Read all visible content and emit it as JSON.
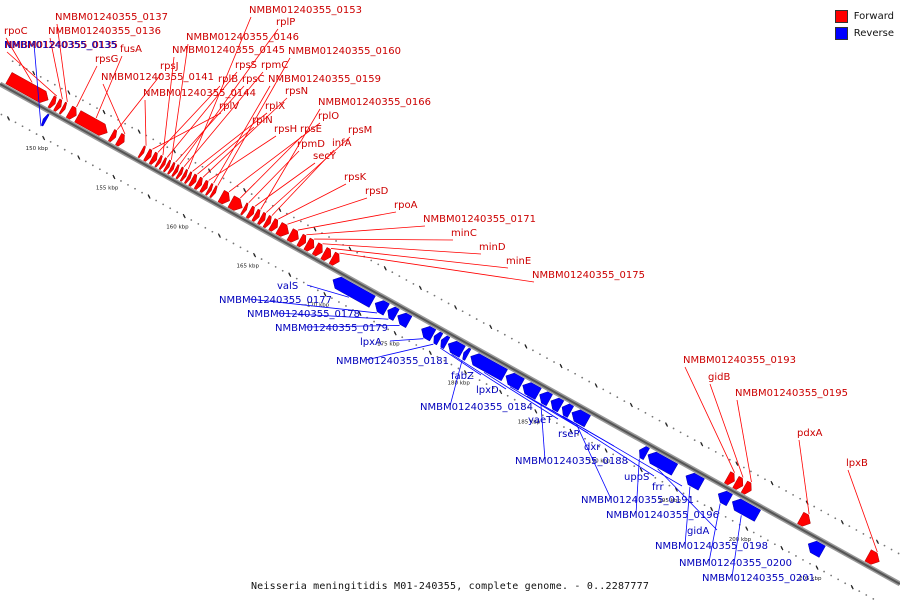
{
  "caption": "Neisseria meningitidis M01-240355, complete genome. - 0..2287777",
  "legend": [
    {
      "label": "Forward",
      "color": "#ff0000"
    },
    {
      "label": "Reverse",
      "color": "#0000ff"
    }
  ],
  "colors": {
    "forward": "#ff0000",
    "reverse": "#0000ff",
    "forward_label": "#cc0000",
    "reverse_label": "#0000bb",
    "backbone": "#555555"
  },
  "genome_window": {
    "start_kbp": 146,
    "end_kbp": 210
  },
  "scale_ticks": [
    "150 kbp",
    "155 kbp",
    "160 kbp",
    "165 kbp",
    "170 kbp",
    "175 kbp",
    "180 kbp",
    "185 kbp",
    "190 kbp",
    "195 kbp",
    "200 kbp",
    "205 kbp"
  ],
  "forward_genes": [
    {
      "label": "rpoC",
      "start": 146.3,
      "end": 149.1
    },
    {
      "label": "NMBM01240355_0135",
      "start": 149.3,
      "end": 149.6
    },
    {
      "label": "NMBM01240355_0136",
      "start": 149.7,
      "end": 150.0
    },
    {
      "label": "NMBM01240355_0137",
      "start": 150.1,
      "end": 150.3
    },
    {
      "label": "rpsG",
      "start": 150.6,
      "end": 151.1
    },
    {
      "label": "fusA",
      "start": 151.2,
      "end": 153.3
    },
    {
      "label": "rpsJ",
      "start": 153.6,
      "end": 153.9
    },
    {
      "label": "NMBM01240355_0141",
      "start": 154.1,
      "end": 154.5
    },
    {
      "label": "NMBM01240355_0144",
      "start": 155.7,
      "end": 155.9
    },
    {
      "label": "rplV",
      "start": 156.1,
      "end": 156.4
    },
    {
      "label": "rplB",
      "start": 156.5,
      "end": 156.8
    },
    {
      "label": "NMBM01240355_0145",
      "start": 156.9,
      "end": 157.1
    },
    {
      "label": "rpsS",
      "start": 157.2,
      "end": 157.4
    },
    {
      "label": "NMBM01240355_0146",
      "start": 157.5,
      "end": 157.7
    },
    {
      "label": "rpsC",
      "start": 157.8,
      "end": 158.0
    },
    {
      "label": "rplP",
      "start": 158.1,
      "end": 158.3
    },
    {
      "label": "rpmC",
      "start": 158.4,
      "end": 158.6
    },
    {
      "label": "NMBM01240355_0153",
      "start": 158.7,
      "end": 158.9
    },
    {
      "label": "rplX",
      "start": 159.0,
      "end": 159.2
    },
    {
      "label": "rplN",
      "start": 159.3,
      "end": 159.6
    },
    {
      "label": "rpsN",
      "start": 159.7,
      "end": 160.0
    },
    {
      "label": "rpsH",
      "start": 160.1,
      "end": 160.4
    },
    {
      "label": "NMBM01240355_0159",
      "start": 160.5,
      "end": 160.7
    },
    {
      "label": "NMBM01240355_0160",
      "start": 160.8,
      "end": 161.0
    },
    {
      "label": "rplO",
      "start": 161.4,
      "end": 162.0
    },
    {
      "label": "rpsE",
      "start": 162.1,
      "end": 162.9
    },
    {
      "label": "rpmD",
      "start": 163.0,
      "end": 163.2
    },
    {
      "label": "secY",
      "start": 163.4,
      "end": 163.7
    },
    {
      "label": "NMBM01240355_0166",
      "start": 163.8,
      "end": 164.1
    },
    {
      "label": "rpsM",
      "start": 164.2,
      "end": 164.5
    },
    {
      "label": "infA",
      "start": 164.6,
      "end": 164.9
    },
    {
      "label": "rpsK",
      "start": 165.0,
      "end": 165.4
    },
    {
      "label": "rpsD",
      "start": 165.5,
      "end": 166.2
    },
    {
      "label": "rpoA",
      "start": 166.3,
      "end": 166.9
    },
    {
      "label": "NMBM01240355_0171",
      "start": 167.0,
      "end": 167.4
    },
    {
      "label": "minC",
      "start": 167.5,
      "end": 168.0
    },
    {
      "label": "minD",
      "start": 168.1,
      "end": 168.6
    },
    {
      "label": "minE",
      "start": 168.7,
      "end": 169.2
    },
    {
      "label": "NMBM01240355_0175",
      "start": 169.3,
      "end": 169.8
    },
    {
      "label": "NMBM01240355_0193",
      "start": 197.4,
      "end": 197.9
    },
    {
      "label": "gidB",
      "start": 198.0,
      "end": 198.5
    },
    {
      "label": "NMBM01240355_0195",
      "start": 198.6,
      "end": 199.1
    },
    {
      "label": "pdxA",
      "start": 202.6,
      "end": 203.3
    },
    {
      "label": "lpxB",
      "start": 207.4,
      "end": 208.2
    }
  ],
  "forward_label_lines": [
    {
      "text": "rpoC",
      "gene": 0,
      "side": "L"
    },
    {
      "text": "NMBM01240355_0135",
      "gene": 1,
      "side": "L"
    },
    {
      "text": "NMBM01240355_0136",
      "gene": 2,
      "side": "L"
    },
    {
      "text": "NMBM01240355_0137",
      "gene": 3,
      "side": "L"
    },
    {
      "text": "rpsG",
      "gene": 4,
      "side": "L"
    },
    {
      "text": "fusA",
      "gene": 5,
      "side": "L"
    },
    {
      "text": "rpsJ",
      "gene": 6,
      "side": "L"
    },
    {
      "text": "NMBM01240355_0141",
      "gene": 7,
      "side": "L"
    },
    {
      "text": "NMBM01240355_0144",
      "gene": 8,
      "side": "L"
    },
    {
      "text": "rplV",
      "gene": 9,
      "side": "L"
    },
    {
      "text": "rplB",
      "gene": 10,
      "side": "L"
    },
    {
      "text": "NMBM01240355_0145",
      "gene": 11,
      "side": "L"
    },
    {
      "text": "rpsS",
      "gene": 12,
      "side": "L"
    },
    {
      "text": "NMBM01240355_0146",
      "gene": 13,
      "side": "L"
    },
    {
      "text": "rpsC",
      "gene": 14,
      "side": "L"
    },
    {
      "text": "rplP",
      "gene": 15,
      "side": "L"
    },
    {
      "text": "rpmC",
      "gene": 16,
      "side": "L"
    },
    {
      "text": "NMBM01240355_0153",
      "gene": 17,
      "side": "L"
    },
    {
      "text": "rplX",
      "gene": 18,
      "side": "L"
    },
    {
      "text": "rplN",
      "gene": 19,
      "side": "L"
    },
    {
      "text": "rpsN",
      "gene": 20,
      "side": "L"
    },
    {
      "text": "rpsH",
      "gene": 21,
      "side": "L"
    },
    {
      "text": "NMBM01240355_0159",
      "gene": 22,
      "side": "L"
    },
    {
      "text": "NMBM01240355_0160",
      "gene": 23,
      "side": "L"
    },
    {
      "text": "rplO",
      "gene": 24,
      "side": "L"
    },
    {
      "text": "rpsE",
      "gene": 25,
      "side": "L"
    },
    {
      "text": "rpmD",
      "gene": 26,
      "side": "L"
    },
    {
      "text": "secY",
      "gene": 27,
      "side": "L"
    },
    {
      "text": "NMBM01240355_0166",
      "gene": 28,
      "side": "L"
    },
    {
      "text": "rpsM",
      "gene": 29,
      "side": "L"
    },
    {
      "text": "infA",
      "gene": 30,
      "side": "L"
    },
    {
      "text": "rpsK",
      "gene": 31,
      "side": "L"
    },
    {
      "text": "rpsD",
      "gene": 32,
      "side": "L"
    },
    {
      "text": "rpoA",
      "gene": 33,
      "side": "L"
    },
    {
      "text": "NMBM01240355_0171",
      "gene": 34,
      "side": "L"
    },
    {
      "text": "minC",
      "gene": 35,
      "side": "L"
    },
    {
      "text": "minD",
      "gene": 36,
      "side": "L"
    },
    {
      "text": "minE",
      "gene": 37,
      "side": "L"
    },
    {
      "text": "NMBM01240355_0175",
      "gene": 38,
      "side": "L"
    },
    {
      "text": "NMBM01240355_0193",
      "gene": 39,
      "side": "L"
    },
    {
      "text": "gidB",
      "gene": 40,
      "side": "L"
    },
    {
      "text": "NMBM01240355_0195",
      "gene": 41,
      "side": "L"
    },
    {
      "text": "pdxA",
      "gene": 42,
      "side": "L"
    },
    {
      "text": "lpxB",
      "gene": 43,
      "side": "L"
    }
  ],
  "reverse_genes": [
    {
      "label": "NMBM01240355_0135",
      "start": 149.4,
      "end": 149.6
    },
    {
      "label": "valS",
      "start": 170.0,
      "end": 172.8
    },
    {
      "label": "NMBM01240355_0177",
      "start": 173.0,
      "end": 173.8
    },
    {
      "label": "NMBM01240355_0178",
      "start": 173.9,
      "end": 174.5
    },
    {
      "label": "NMBM01240355_0179",
      "start": 174.6,
      "end": 175.4
    },
    {
      "label": "lpxA",
      "start": 176.3,
      "end": 177.1
    },
    {
      "label": "NMBM01240355_0181",
      "start": 177.2,
      "end": 177.6
    },
    {
      "label": "fabZ",
      "start": 177.7,
      "end": 178.1
    },
    {
      "label": "lpxD",
      "start": 178.2,
      "end": 179.2
    },
    {
      "label": "NMBM01240355_0184",
      "start": 179.3,
      "end": 179.6
    },
    {
      "label": "yaeT",
      "start": 179.8,
      "end": 182.2
    },
    {
      "label": "rseP",
      "start": 182.3,
      "end": 183.4
    },
    {
      "label": "dxr",
      "start": 183.5,
      "end": 184.6
    },
    {
      "label": "NMBM01240355_0188",
      "start": 184.7,
      "end": 185.4
    },
    {
      "label": "uppS",
      "start": 185.5,
      "end": 186.2
    },
    {
      "label": "frr",
      "start": 186.3,
      "end": 186.9
    },
    {
      "label": "NMBM01240355_0191",
      "start": 187.0,
      "end": 188.1
    },
    {
      "label": "NMBM01240355_0196",
      "start": 191.8,
      "end": 192.3
    },
    {
      "label": "gidA",
      "start": 192.4,
      "end": 194.3
    },
    {
      "label": "NMBM01240355_0198",
      "start": 195.1,
      "end": 196.2
    },
    {
      "label": "NMBM01240355_0200",
      "start": 197.4,
      "end": 198.2
    },
    {
      "label": "NMBM01240355_0201",
      "start": 198.4,
      "end": 200.2
    },
    {
      "label": "",
      "start": 203.8,
      "end": 204.8
    }
  ],
  "reverse_label_lines": [
    {
      "text": "NMBM01240355_0135"
    },
    {
      "text": "valS"
    },
    {
      "text": "NMBM01240355_0177"
    },
    {
      "text": "NMBM01240355_0178"
    },
    {
      "text": "NMBM01240355_0179"
    },
    {
      "text": "lpxA"
    },
    {
      "text": "NMBM01240355_0181"
    },
    {
      "text": "fabZ"
    },
    {
      "text": "lpxD"
    },
    {
      "text": "NMBM01240355_0184"
    },
    {
      "text": "yaeT"
    },
    {
      "text": "rseP"
    },
    {
      "text": "dxr"
    },
    {
      "text": "NMBM01240355_0188"
    },
    {
      "text": "uppS"
    },
    {
      "text": "frr"
    },
    {
      "text": "NMBM01240355_0191"
    },
    {
      "text": "NMBM01240355_0196"
    },
    {
      "text": "gidA"
    },
    {
      "text": "NMBM01240355_0198"
    },
    {
      "text": "NMBM01240355_0200"
    },
    {
      "text": "NMBM01240355_0201"
    }
  ]
}
